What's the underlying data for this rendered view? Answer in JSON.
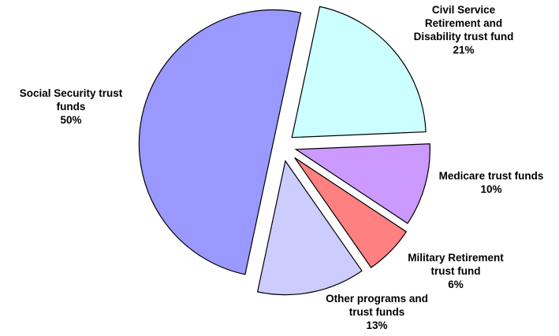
{
  "chart_data": {
    "type": "pie",
    "title": "",
    "slices": [
      {
        "label_lines": [
          "Civil Service",
          "Retirement and",
          "Disability trust fund"
        ],
        "pct_label": "21%",
        "value": 21,
        "color": "#ccffff"
      },
      {
        "label_lines": [
          "Medicare trust funds"
        ],
        "pct_label": "10%",
        "value": 10,
        "color": "#cc99ff"
      },
      {
        "label_lines": [
          "Military Retirement",
          "trust fund"
        ],
        "pct_label": "6%",
        "value": 6,
        "color": "#ff8080"
      },
      {
        "label_lines": [
          "Other programs and",
          "trust funds"
        ],
        "pct_label": "13%",
        "value": 13,
        "color": "#ccccff"
      },
      {
        "label_lines": [
          "Social Security trust",
          "funds"
        ],
        "pct_label": "50%",
        "value": 50,
        "color": "#9999ff"
      }
    ]
  }
}
